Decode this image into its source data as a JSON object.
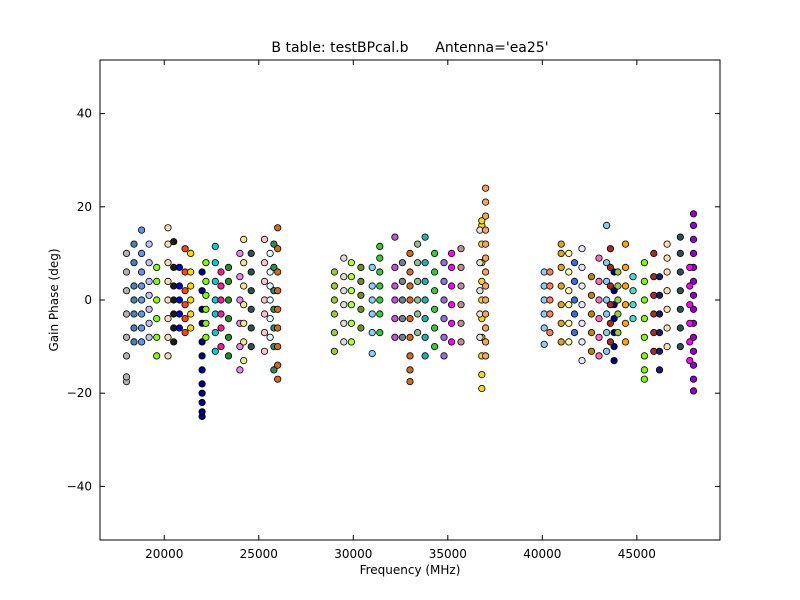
{
  "chart_data": {
    "type": "scatter",
    "title": "B table: testBPcal.b      Antenna='ea25'",
    "xlabel": "Frequency (MHz)",
    "ylabel": "Gain Phase (deg)",
    "xlim": [
      16600,
      49400
    ],
    "ylim": [
      -51.5,
      51.5
    ],
    "x_ticks": [
      20000,
      25000,
      30000,
      35000,
      40000,
      45000
    ],
    "x_tick_labels": [
      "20000",
      "25000",
      "30000",
      "35000",
      "40000",
      "45000"
    ],
    "y_ticks": [
      -40,
      -20,
      0,
      20,
      40
    ],
    "y_tick_labels": [
      "−40",
      "−20",
      "0",
      "20",
      "40"
    ],
    "grid": false,
    "legend": "none",
    "point_edge_color": "#000000",
    "series": [
      {
        "color": "#b3b3b3",
        "x": [
          18000,
          18000,
          18000,
          18000,
          18000,
          18000,
          18000,
          18000
        ],
        "y": [
          -17.5,
          -16.5,
          -12,
          -8,
          -3,
          2,
          6,
          10
        ]
      },
      {
        "color": "#4682b4",
        "x": [
          18400,
          18400,
          18400,
          18400,
          18400,
          18400,
          18400
        ],
        "y": [
          -9,
          -6,
          -3,
          0,
          3,
          8,
          12
        ]
      },
      {
        "color": "#6495ed",
        "x": [
          18800,
          18800,
          18800,
          18800,
          18800,
          18800,
          18800,
          18800
        ],
        "y": [
          -9,
          -6,
          -3,
          0,
          3,
          6,
          10,
          15
        ]
      },
      {
        "color": "#c0c0ff",
        "x": [
          19200,
          19200,
          19200,
          19200,
          19200,
          19200,
          19200
        ],
        "y": [
          -8,
          -5,
          -2,
          1,
          4,
          8,
          12
        ]
      },
      {
        "color": "#7fff00",
        "x": [
          19600,
          19600,
          19600,
          19600,
          19600,
          19600
        ],
        "y": [
          -12,
          -8,
          -4,
          0,
          4,
          7
        ]
      },
      {
        "color": "#f5deb3",
        "x": [
          20200,
          20200,
          20200,
          20200,
          20200,
          20200,
          20200,
          20200
        ],
        "y": [
          -12,
          -8,
          -4,
          0,
          4,
          8,
          12,
          15.5
        ]
      },
      {
        "color": "#1a1a1a",
        "x": [
          20500,
          20500,
          20500,
          20500,
          20500,
          20500,
          20500
        ],
        "y": [
          -9,
          -6,
          -3,
          0,
          3,
          7,
          12.5
        ]
      },
      {
        "color": "#0000cd",
        "x": [
          20800,
          20800,
          20800,
          20800,
          20800
        ],
        "y": [
          -6,
          -3,
          0,
          3,
          7
        ]
      },
      {
        "color": "#ff4500",
        "x": [
          21100,
          21100,
          21100,
          21100,
          21100,
          21100
        ],
        "y": [
          -7,
          -4,
          -1,
          2,
          6,
          11
        ]
      },
      {
        "color": "#ffd700",
        "x": [
          21400,
          21400,
          21400,
          21400,
          21400,
          21400
        ],
        "y": [
          -6,
          -3,
          0,
          3,
          6,
          10
        ]
      },
      {
        "color": "#00008b",
        "x": [
          22000,
          22000,
          22000,
          22000,
          22000,
          22000,
          22000,
          22000,
          22000,
          22000,
          22000,
          22000
        ],
        "y": [
          -25,
          -24,
          -22,
          -20,
          -18,
          -15,
          -12,
          -9,
          -5,
          -2,
          2,
          6
        ]
      },
      {
        "color": "#7cfc00",
        "x": [
          22200,
          22200,
          22200,
          22200,
          22200,
          22200
        ],
        "y": [
          -8,
          -5,
          -2,
          1,
          4,
          8
        ]
      },
      {
        "color": "#00ced1",
        "x": [
          22700,
          22700,
          22700,
          22700,
          22700,
          22700,
          22700
        ],
        "y": [
          -11,
          -7,
          -3,
          0,
          4,
          8,
          11.5
        ]
      },
      {
        "color": "#ff1493",
        "x": [
          23000,
          23000,
          23000,
          23000,
          23000,
          23000
        ],
        "y": [
          -10,
          -6,
          -3,
          0,
          3,
          6
        ]
      },
      {
        "color": "#228b22",
        "x": [
          23400,
          23400,
          23400,
          23400,
          23400,
          23400
        ],
        "y": [
          -12,
          -8,
          -4,
          0,
          4,
          7
        ]
      },
      {
        "color": "#ee82ee",
        "x": [
          24000,
          24000,
          24000,
          24000,
          24000,
          24000
        ],
        "y": [
          -15,
          -10,
          -5,
          0,
          5,
          10
        ]
      },
      {
        "color": "#f0e68c",
        "x": [
          24200,
          24200,
          24200,
          24200,
          24200,
          24200,
          24200
        ],
        "y": [
          -13,
          -9,
          -5,
          -1,
          3,
          8,
          13
        ]
      },
      {
        "color": "#2f4f4f",
        "x": [
          24600,
          24600,
          24600,
          24600,
          24600,
          24600
        ],
        "y": [
          -10,
          -6,
          -2,
          2,
          6,
          10
        ]
      },
      {
        "color": "#ffc0cb",
        "x": [
          25300,
          25300,
          25300,
          25300,
          25300,
          25300,
          25300
        ],
        "y": [
          -11,
          -7,
          -3,
          0,
          4,
          8,
          13
        ]
      },
      {
        "color": "#e0ffff",
        "x": [
          25600,
          25600,
          25600,
          25600,
          25600,
          25600
        ],
        "y": [
          -8,
          -4,
          0,
          3,
          6,
          10
        ]
      },
      {
        "color": "#2e8b57",
        "x": [
          25800,
          25800,
          25800,
          25800,
          25800,
          25800,
          25800
        ],
        "y": [
          -15,
          -10,
          -6,
          -2,
          2,
          7,
          12
        ]
      },
      {
        "color": "#d2691e",
        "x": [
          26000,
          26000,
          26000,
          26000,
          26000,
          26000,
          26000,
          26000,
          26000
        ],
        "y": [
          -17,
          -14,
          -10,
          -6,
          -2,
          2,
          6,
          11,
          15.5
        ]
      },
      {
        "color": "#9acd32",
        "x": [
          29000,
          29000,
          29000,
          29000,
          29000,
          29000
        ],
        "y": [
          -11,
          -7,
          -3,
          0,
          3,
          6
        ]
      },
      {
        "color": "#dcdcdc",
        "x": [
          29500,
          29500,
          29500,
          29500,
          29500,
          29500
        ],
        "y": [
          -9,
          -5,
          -1,
          2,
          5,
          9
        ]
      },
      {
        "color": "#adff2f",
        "x": [
          29900,
          29900,
          29900,
          29900,
          29900,
          29900
        ],
        "y": [
          -9,
          -5,
          -1,
          2,
          5,
          8
        ]
      },
      {
        "color": "#6b8e23",
        "x": [
          30400,
          30400,
          30400,
          30400,
          30400
        ],
        "y": [
          -6,
          -2,
          1,
          4,
          7
        ]
      },
      {
        "color": "#87cefa",
        "x": [
          31000,
          31000,
          31000,
          31000,
          31000,
          31000
        ],
        "y": [
          -11.5,
          -7,
          -3,
          0,
          3,
          7
        ]
      },
      {
        "color": "#32cd32",
        "x": [
          31400,
          31400,
          31400,
          31400,
          31400,
          31400,
          31400
        ],
        "y": [
          -7,
          -3,
          0,
          3,
          6,
          9,
          11.5
        ]
      },
      {
        "color": "#ba55d3",
        "x": [
          32200,
          32200,
          32200,
          32200,
          32200,
          32200
        ],
        "y": [
          -8,
          -4,
          0,
          3,
          7,
          13.5
        ]
      },
      {
        "color": "#708090",
        "x": [
          32600,
          32600,
          32600,
          32600,
          32600
        ],
        "y": [
          -8,
          -4,
          0,
          4,
          8
        ]
      },
      {
        "color": "#d2691e",
        "x": [
          33000,
          33000,
          33000,
          33000,
          33000,
          33000,
          33000,
          33000,
          33000
        ],
        "y": [
          -17.5,
          -15,
          -12,
          -8,
          -4,
          0,
          3,
          6,
          10
        ]
      },
      {
        "color": "#8fbc8f",
        "x": [
          33400,
          33400,
          33400,
          33400,
          33400,
          33400
        ],
        "y": [
          -7,
          -3,
          0,
          4,
          8,
          12
        ]
      },
      {
        "color": "#20b2aa",
        "x": [
          33800,
          33800,
          33800,
          33800,
          33800,
          33800,
          33800
        ],
        "y": [
          -12,
          -8,
          -4,
          0,
          4,
          8,
          13.5
        ]
      },
      {
        "color": "#32cd32",
        "x": [
          34300,
          34300,
          34300,
          34300,
          34300,
          34300
        ],
        "y": [
          -10,
          -6,
          -2,
          2,
          6,
          10
        ]
      },
      {
        "color": "#9370db",
        "x": [
          34800,
          34800,
          34800,
          34800,
          34800,
          34800
        ],
        "y": [
          -12,
          -8,
          -4,
          0,
          4,
          8
        ]
      },
      {
        "color": "#ff00ff",
        "x": [
          35200,
          35200,
          35200,
          35200,
          35200,
          35200
        ],
        "y": [
          -9,
          -5,
          -1,
          3,
          7,
          10
        ]
      },
      {
        "color": "#bc8f8f",
        "x": [
          35700,
          35700,
          35700,
          35700,
          35700,
          35700
        ],
        "y": [
          -9,
          -5,
          -1,
          3,
          7,
          11
        ]
      },
      {
        "color": "#ffd700",
        "x": [
          36800,
          36800,
          36800,
          36800,
          36800,
          36800,
          36800,
          36800,
          36800,
          36800,
          36800
        ],
        "y": [
          -19,
          -16,
          -12,
          -8,
          -4,
          0,
          4,
          8,
          12,
          16,
          17
        ]
      },
      {
        "color": "#e0e0e0",
        "x": [
          36700,
          36700,
          36700,
          36700,
          36700
        ],
        "y": [
          -8,
          -3,
          2,
          8,
          15
        ]
      },
      {
        "color": "#f4a460",
        "x": [
          37000,
          37000,
          37000,
          37000,
          37000,
          37000,
          37000,
          37000,
          37000,
          37000,
          37000,
          37000,
          37000
        ],
        "y": [
          -12,
          -9,
          -6,
          -3,
          0,
          3,
          6,
          9,
          12,
          15,
          18,
          21,
          24
        ]
      },
      {
        "color": "#87cefa",
        "x": [
          40100,
          40100,
          40100,
          40100,
          40100,
          40100
        ],
        "y": [
          -9.5,
          -6,
          -3,
          0,
          3,
          6
        ]
      },
      {
        "color": "#ff7f50",
        "x": [
          40400,
          40400,
          40400,
          40400,
          40400
        ],
        "y": [
          -7,
          -3,
          0,
          3,
          6
        ]
      },
      {
        "color": "#daa520",
        "x": [
          41000,
          41000,
          41000,
          41000,
          41000,
          41000,
          41000
        ],
        "y": [
          -9,
          -5,
          -1,
          3,
          7,
          10,
          12
        ]
      },
      {
        "color": "#ffff99",
        "x": [
          41400,
          41400,
          41400,
          41400,
          41400,
          41400
        ],
        "y": [
          -9,
          -5,
          -1,
          2,
          6,
          10
        ]
      },
      {
        "color": "#4169e1",
        "x": [
          41700,
          41700,
          41700,
          41700,
          41700
        ],
        "y": [
          -7,
          -3,
          0,
          4,
          8
        ]
      },
      {
        "color": "#e6e6fa",
        "x": [
          42100,
          42100,
          42100,
          42100,
          42100,
          42100,
          42100
        ],
        "y": [
          -13,
          -9,
          -5,
          -1,
          3,
          7,
          11
        ]
      },
      {
        "color": "#b8860b",
        "x": [
          42600,
          42600,
          42600,
          42600,
          42600
        ],
        "y": [
          -11,
          -7,
          -3,
          1,
          5
        ]
      },
      {
        "color": "#ff69b4",
        "x": [
          43000,
          43000,
          43000,
          43000,
          43000,
          43000
        ],
        "y": [
          -12,
          -8,
          -4,
          0,
          4,
          9
        ]
      },
      {
        "color": "#87ceeb",
        "x": [
          43400,
          43400,
          43400,
          43400,
          43400,
          43400,
          43400
        ],
        "y": [
          -11,
          -7,
          -3,
          0,
          4,
          8,
          16
        ]
      },
      {
        "color": "#00008b",
        "x": [
          43800,
          43800,
          43800,
          43800,
          43800,
          43800,
          43800
        ],
        "y": [
          -13,
          -10,
          -7,
          -4,
          -1,
          2,
          6
        ]
      },
      {
        "color": "#b22222",
        "x": [
          43600,
          43600,
          43600,
          43600,
          43600,
          43600
        ],
        "y": [
          -9,
          -5,
          -1,
          3,
          7,
          11
        ]
      },
      {
        "color": "#9acd32",
        "x": [
          44000,
          44000,
          44000,
          44000,
          44000
        ],
        "y": [
          -7,
          -3,
          0,
          3,
          6
        ]
      },
      {
        "color": "#ffa500",
        "x": [
          44400,
          44400,
          44400,
          44400,
          44400,
          44400
        ],
        "y": [
          -9,
          -5,
          -1,
          3,
          7,
          12
        ]
      },
      {
        "color": "#40e0d0",
        "x": [
          44800,
          44800,
          44800,
          44800
        ],
        "y": [
          -4,
          -1,
          2,
          5
        ]
      },
      {
        "color": "#7cfc00",
        "x": [
          45400,
          45400,
          45400,
          45400,
          45400,
          45400,
          45400,
          45400
        ],
        "y": [
          -17,
          -15,
          -12,
          -8,
          -4,
          0,
          4,
          8
        ]
      },
      {
        "color": "#a52a2a",
        "x": [
          45900,
          45900,
          45900,
          45900,
          45900,
          45900
        ],
        "y": [
          -11,
          -7,
          -3,
          1,
          5,
          10
        ]
      },
      {
        "color": "#191970",
        "x": [
          46200,
          46200,
          46200,
          46200,
          46200,
          46200
        ],
        "y": [
          -15,
          -11,
          -7,
          -3,
          1,
          5
        ]
      },
      {
        "color": "#ffdead",
        "x": [
          46600,
          46600,
          46600,
          46600,
          46600,
          46600,
          46600
        ],
        "y": [
          -10,
          -6,
          -2,
          2,
          6,
          9,
          12
        ]
      },
      {
        "color": "#2f4f4f",
        "x": [
          47300,
          47300,
          47300,
          47300,
          47300,
          47300,
          47300
        ],
        "y": [
          -10,
          -6,
          -2,
          2,
          6,
          10,
          13.5
        ]
      },
      {
        "color": "#9400d3",
        "x": [
          48000,
          48000,
          48000,
          48000,
          48000,
          48000,
          48000,
          48000,
          48000,
          48000,
          48000,
          48000,
          48000,
          48000
        ],
        "y": [
          -19.5,
          -17,
          -14,
          -11,
          -8,
          -5,
          -2,
          1,
          4,
          7,
          10,
          13,
          16,
          18.5
        ]
      },
      {
        "color": "#ff00ff",
        "x": [
          47800,
          47800,
          47800,
          47800,
          47800,
          47800
        ],
        "y": [
          -13,
          -9,
          -5,
          -1,
          3,
          7
        ]
      }
    ]
  }
}
